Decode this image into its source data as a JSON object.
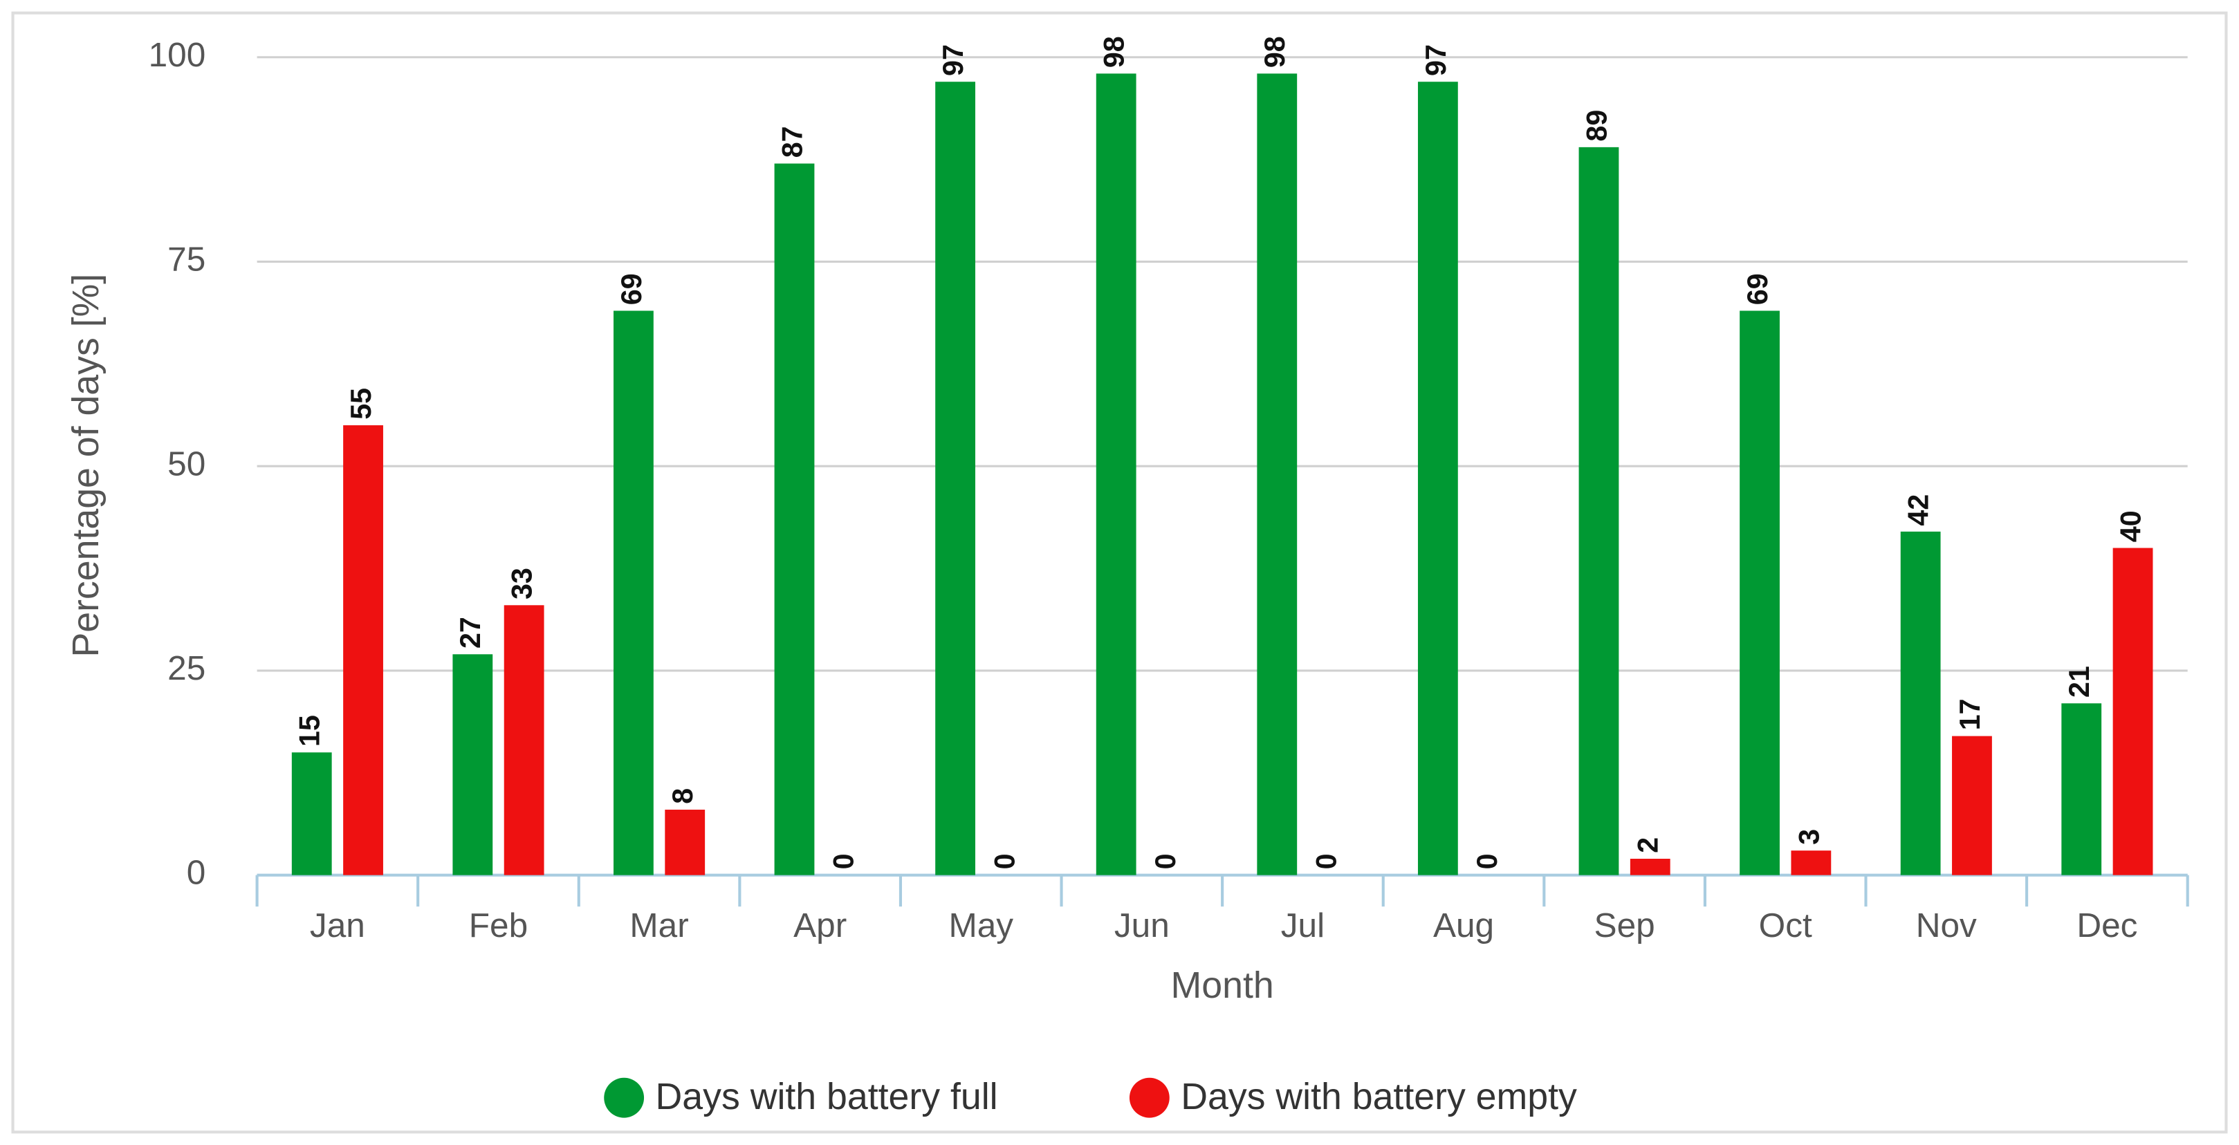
{
  "chart_data": {
    "type": "bar",
    "x_label": "Month",
    "y_label": "Percentage of days [%]",
    "categories": [
      "Jan",
      "Feb",
      "Mar",
      "Apr",
      "May",
      "Jun",
      "Jul",
      "Aug",
      "Sep",
      "Oct",
      "Nov",
      "Dec"
    ],
    "series": [
      {
        "name": "Days with battery full",
        "color": "#009933",
        "values": [
          15,
          27,
          69,
          87,
          97,
          98,
          98,
          97,
          89,
          69,
          42,
          21
        ]
      },
      {
        "name": "Days with battery empty",
        "color": "#ee1111",
        "values": [
          55,
          33,
          8,
          0,
          0,
          0,
          0,
          0,
          2,
          3,
          17,
          40
        ]
      }
    ],
    "ylim": [
      0,
      100
    ],
    "yticks": [
      0,
      25,
      50,
      75,
      100
    ],
    "grid": true,
    "legend": "bottom"
  }
}
